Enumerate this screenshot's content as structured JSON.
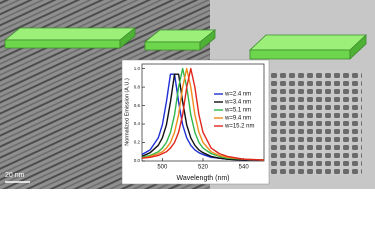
{
  "image": {
    "scale_bar": "20 nm"
  },
  "chart_data": {
    "type": "line",
    "x_label": "Wavelength (nm)",
    "y_label": "Normalized Emission (A.U.)",
    "x": [
      490,
      494,
      498,
      500,
      502,
      504,
      506,
      508,
      510,
      512,
      514,
      516,
      518,
      520,
      524,
      528,
      532,
      540,
      550
    ],
    "series": [
      {
        "name": "w=2.4 nm",
        "color": "#1f2fd6",
        "values": [
          0.07,
          0.12,
          0.25,
          0.39,
          0.64,
          0.94,
          0.94,
          0.64,
          0.39,
          0.25,
          0.17,
          0.12,
          0.09,
          0.07,
          0.04,
          0.03,
          0.02,
          0.01,
          0.01
        ]
      },
      {
        "name": "w=3.4 nm",
        "color": "#111111",
        "values": [
          0.05,
          0.09,
          0.17,
          0.25,
          0.39,
          0.64,
          0.94,
          0.94,
          0.64,
          0.39,
          0.25,
          0.17,
          0.12,
          0.09,
          0.05,
          0.03,
          0.02,
          0.01,
          0.01
        ]
      },
      {
        "name": "w=5.1 nm",
        "color": "#2fb84a",
        "values": [
          0.04,
          0.06,
          0.1,
          0.14,
          0.2,
          0.31,
          0.5,
          0.8,
          1.0,
          0.8,
          0.5,
          0.31,
          0.2,
          0.14,
          0.08,
          0.05,
          0.03,
          0.02,
          0.01
        ]
      },
      {
        "name": "w=9.4 nm",
        "color": "#f08c1e",
        "values": [
          0.03,
          0.05,
          0.08,
          0.1,
          0.14,
          0.2,
          0.31,
          0.5,
          0.8,
          1.0,
          0.8,
          0.5,
          0.31,
          0.2,
          0.1,
          0.06,
          0.04,
          0.02,
          0.01
        ]
      },
      {
        "name": "w=15.2 nm",
        "color": "#e0261e",
        "values": [
          0.03,
          0.04,
          0.06,
          0.08,
          0.1,
          0.14,
          0.2,
          0.31,
          0.5,
          0.8,
          1.0,
          0.8,
          0.5,
          0.31,
          0.14,
          0.08,
          0.05,
          0.02,
          0.01
        ]
      }
    ],
    "xlim": [
      490,
      550
    ],
    "xticks": [
      500,
      520,
      540
    ],
    "ylim": [
      0,
      1.05
    ],
    "yticks": [
      {
        "value": 0,
        "label": "0.0"
      },
      {
        "value": 0.2,
        "label": "0.2"
      },
      {
        "value": 0.4,
        "label": "0.4"
      },
      {
        "value": 0.6,
        "label": "0.6"
      },
      {
        "value": 0.8,
        "label": "0.8"
      },
      {
        "value": 1,
        "label": "1.0"
      }
    ],
    "legend": "upper right"
  }
}
